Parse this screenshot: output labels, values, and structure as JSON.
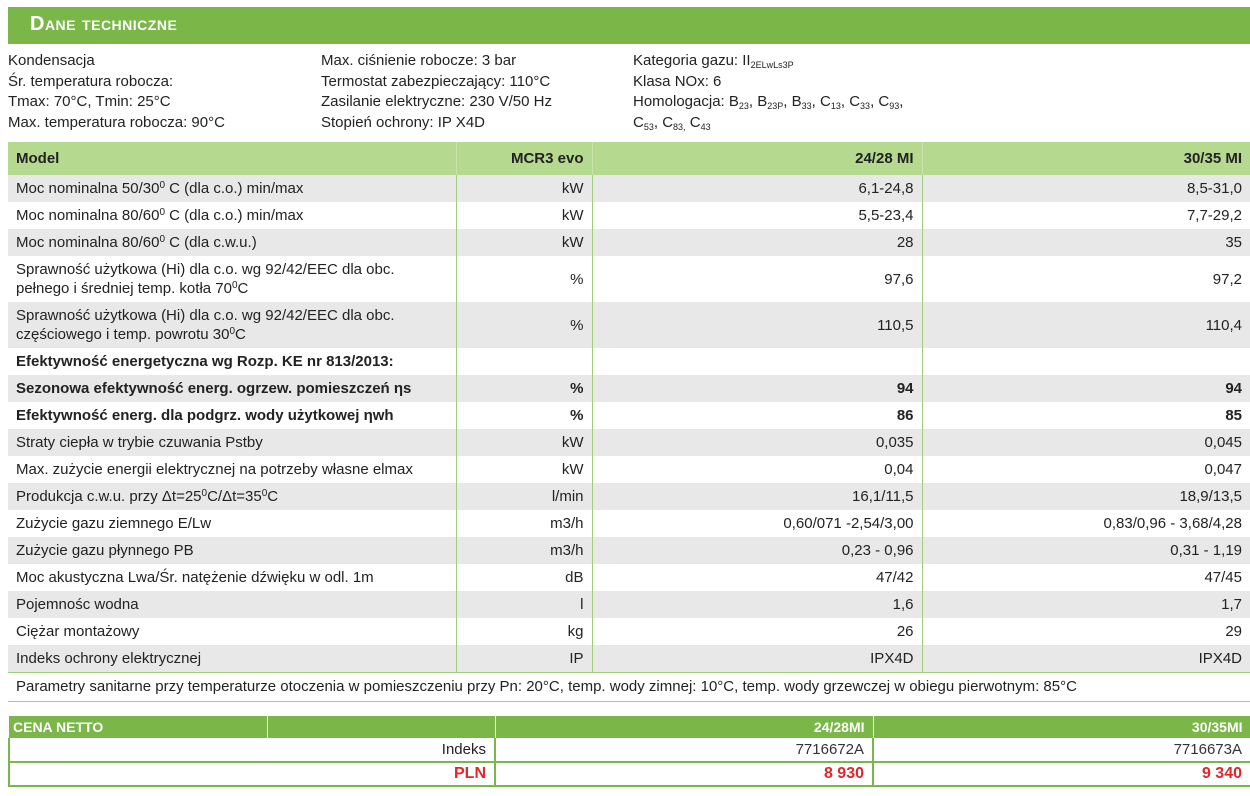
{
  "title": "Dane techniczne",
  "specs": {
    "col1": [
      "Kondensacja",
      "Śr. temperatura robocza:",
      "Tmax: 70°C, Tmin: 25°C",
      "Max. temperatura robocza: 90°C"
    ],
    "col2": [
      "Max. ciśnienie robocze: 3 bar",
      "Termostat zabezpieczający: 110°C",
      "Zasilanie elektryczne: 230 V/50 Hz",
      "Stopień ochrony: IP X4D"
    ],
    "col3": {
      "gas_category": "Kategoria gazu: II",
      "gas_category_sub": "2ELwLs3P",
      "nox": "Klasa NOx: 6",
      "homologation_label": "Homologacja: B",
      "hom": [
        "23",
        "B",
        "23P",
        "B",
        "33",
        "C",
        "13",
        "C",
        "33",
        "C",
        "93",
        "C",
        "53",
        "C",
        "83,",
        "C",
        "43"
      ]
    }
  },
  "table": {
    "headers": {
      "model": "Model",
      "unit": "MCR3 evo",
      "v1": "24/28 MI",
      "v2": "30/35 MI"
    },
    "rows": [
      {
        "label": "Moc nominalna 50/30",
        "sup": "0",
        "label_after": " C (dla c.o.) min/max",
        "unit": "kW",
        "v1": "6,1-24,8",
        "v2": "8,5-31,0"
      },
      {
        "label": "Moc nominalna 80/60",
        "sup": "0",
        "label_after": " C (dla c.o.) min/max",
        "unit": "kW",
        "v1": "5,5-23,4",
        "v2": "7,7-29,2"
      },
      {
        "label": "Moc nominalna 80/60",
        "sup": "0",
        "label_after": " C (dla c.w.u.)",
        "unit": "kW",
        "v1": "28",
        "v2": "35"
      },
      {
        "label": "Sprawność użytkowa (Hi) dla c.o. wg 92/42/EEC dla obc. pełnego i średniej temp. kotła 70",
        "sup": "0",
        "label_after": "C",
        "unit": "%",
        "v1": "97,6",
        "v2": "97,2"
      },
      {
        "label": "Sprawność użytkowa (Hi) dla c.o. wg 92/42/EEC dla obc. częściowego i temp. powrotu 30",
        "sup": "0",
        "label_after": "C",
        "unit": "%",
        "v1": "110,5",
        "v2": "110,4"
      },
      {
        "label": "Efektywność energetyczna wg Rozp. KE nr 813/2013:",
        "sup": "",
        "label_after": "",
        "unit": "",
        "v1": "",
        "v2": ""
      },
      {
        "label": "Sezonowa efektywność energ. ogrzew. pomieszczeń ηs",
        "sup": "",
        "label_after": "",
        "unit": "%",
        "v1": "94",
        "v2": "94"
      },
      {
        "label": "Efektywność energ. dla podgrz. wody użytkowej ηwh",
        "sup": "",
        "label_after": "",
        "unit": "%",
        "v1": "86",
        "v2": "85"
      },
      {
        "label": "Straty ciepła w trybie czuwania Pstby",
        "sup": "",
        "label_after": "",
        "unit": "kW",
        "v1": "0,035",
        "v2": "0,045"
      },
      {
        "label": "Max. zużycie energii elektrycznej na potrzeby własne elmax",
        "sup": "",
        "label_after": "",
        "unit": "kW",
        "v1": "0,04",
        "v2": "0,047"
      },
      {
        "label": "Produkcja c.w.u. przy Δt=25",
        "sup": "0",
        "label_after": "C/Δt=35",
        "sup2": "0",
        "label_after2": "C",
        "unit": "l/min",
        "v1": "16,1/11,5",
        "v2": "18,9/13,5"
      },
      {
        "label": "Zużycie gazu ziemnego E/Lw",
        "sup": "",
        "label_after": "",
        "unit": "m3/h",
        "v1": "0,60/071 -2,54/3,00",
        "v2": "0,83/0,96 - 3,68/4,28"
      },
      {
        "label": "Zużycie gazu płynnego PB",
        "sup": "",
        "label_after": "",
        "unit": "m3/h",
        "v1": "0,23 - 0,96",
        "v2": "0,31 - 1,19"
      },
      {
        "label": "Moc akustyczna Lwa/Śr. natężenie dźwięku w odl. 1m",
        "sup": "",
        "label_after": "",
        "unit": "dB",
        "v1": "47/42",
        "v2": "47/45"
      },
      {
        "label": "Pojemnośc wodna",
        "sup": "",
        "label_after": "",
        "unit": "l",
        "v1": "1,6",
        "v2": "1,7"
      },
      {
        "label": "Ciężar montażowy",
        "sup": "",
        "label_after": "",
        "unit": "kg",
        "v1": "26",
        "v2": "29"
      },
      {
        "label": "Indeks ochrony elektrycznej",
        "sup": "",
        "label_after": "",
        "unit": "IP",
        "v1": "IPX4D",
        "v2": "IPX4D"
      }
    ],
    "note": "Parametry sanitarne przy temperaturze otoczenia w pomieszczeniu przy Pn: 20°C, temp. wody zimnej: 10°C, temp. wody grzewczej w obiegu pierwotnym: 85°C"
  },
  "price": {
    "header": "CENA NETTO",
    "h1": "24/28MI",
    "h2": "30/35MI",
    "index_label": "Indeks",
    "idx1": "7716672A",
    "idx2": "7716673A",
    "pln_label": "PLN",
    "pln1": "8 930",
    "pln2": "9 340"
  }
}
